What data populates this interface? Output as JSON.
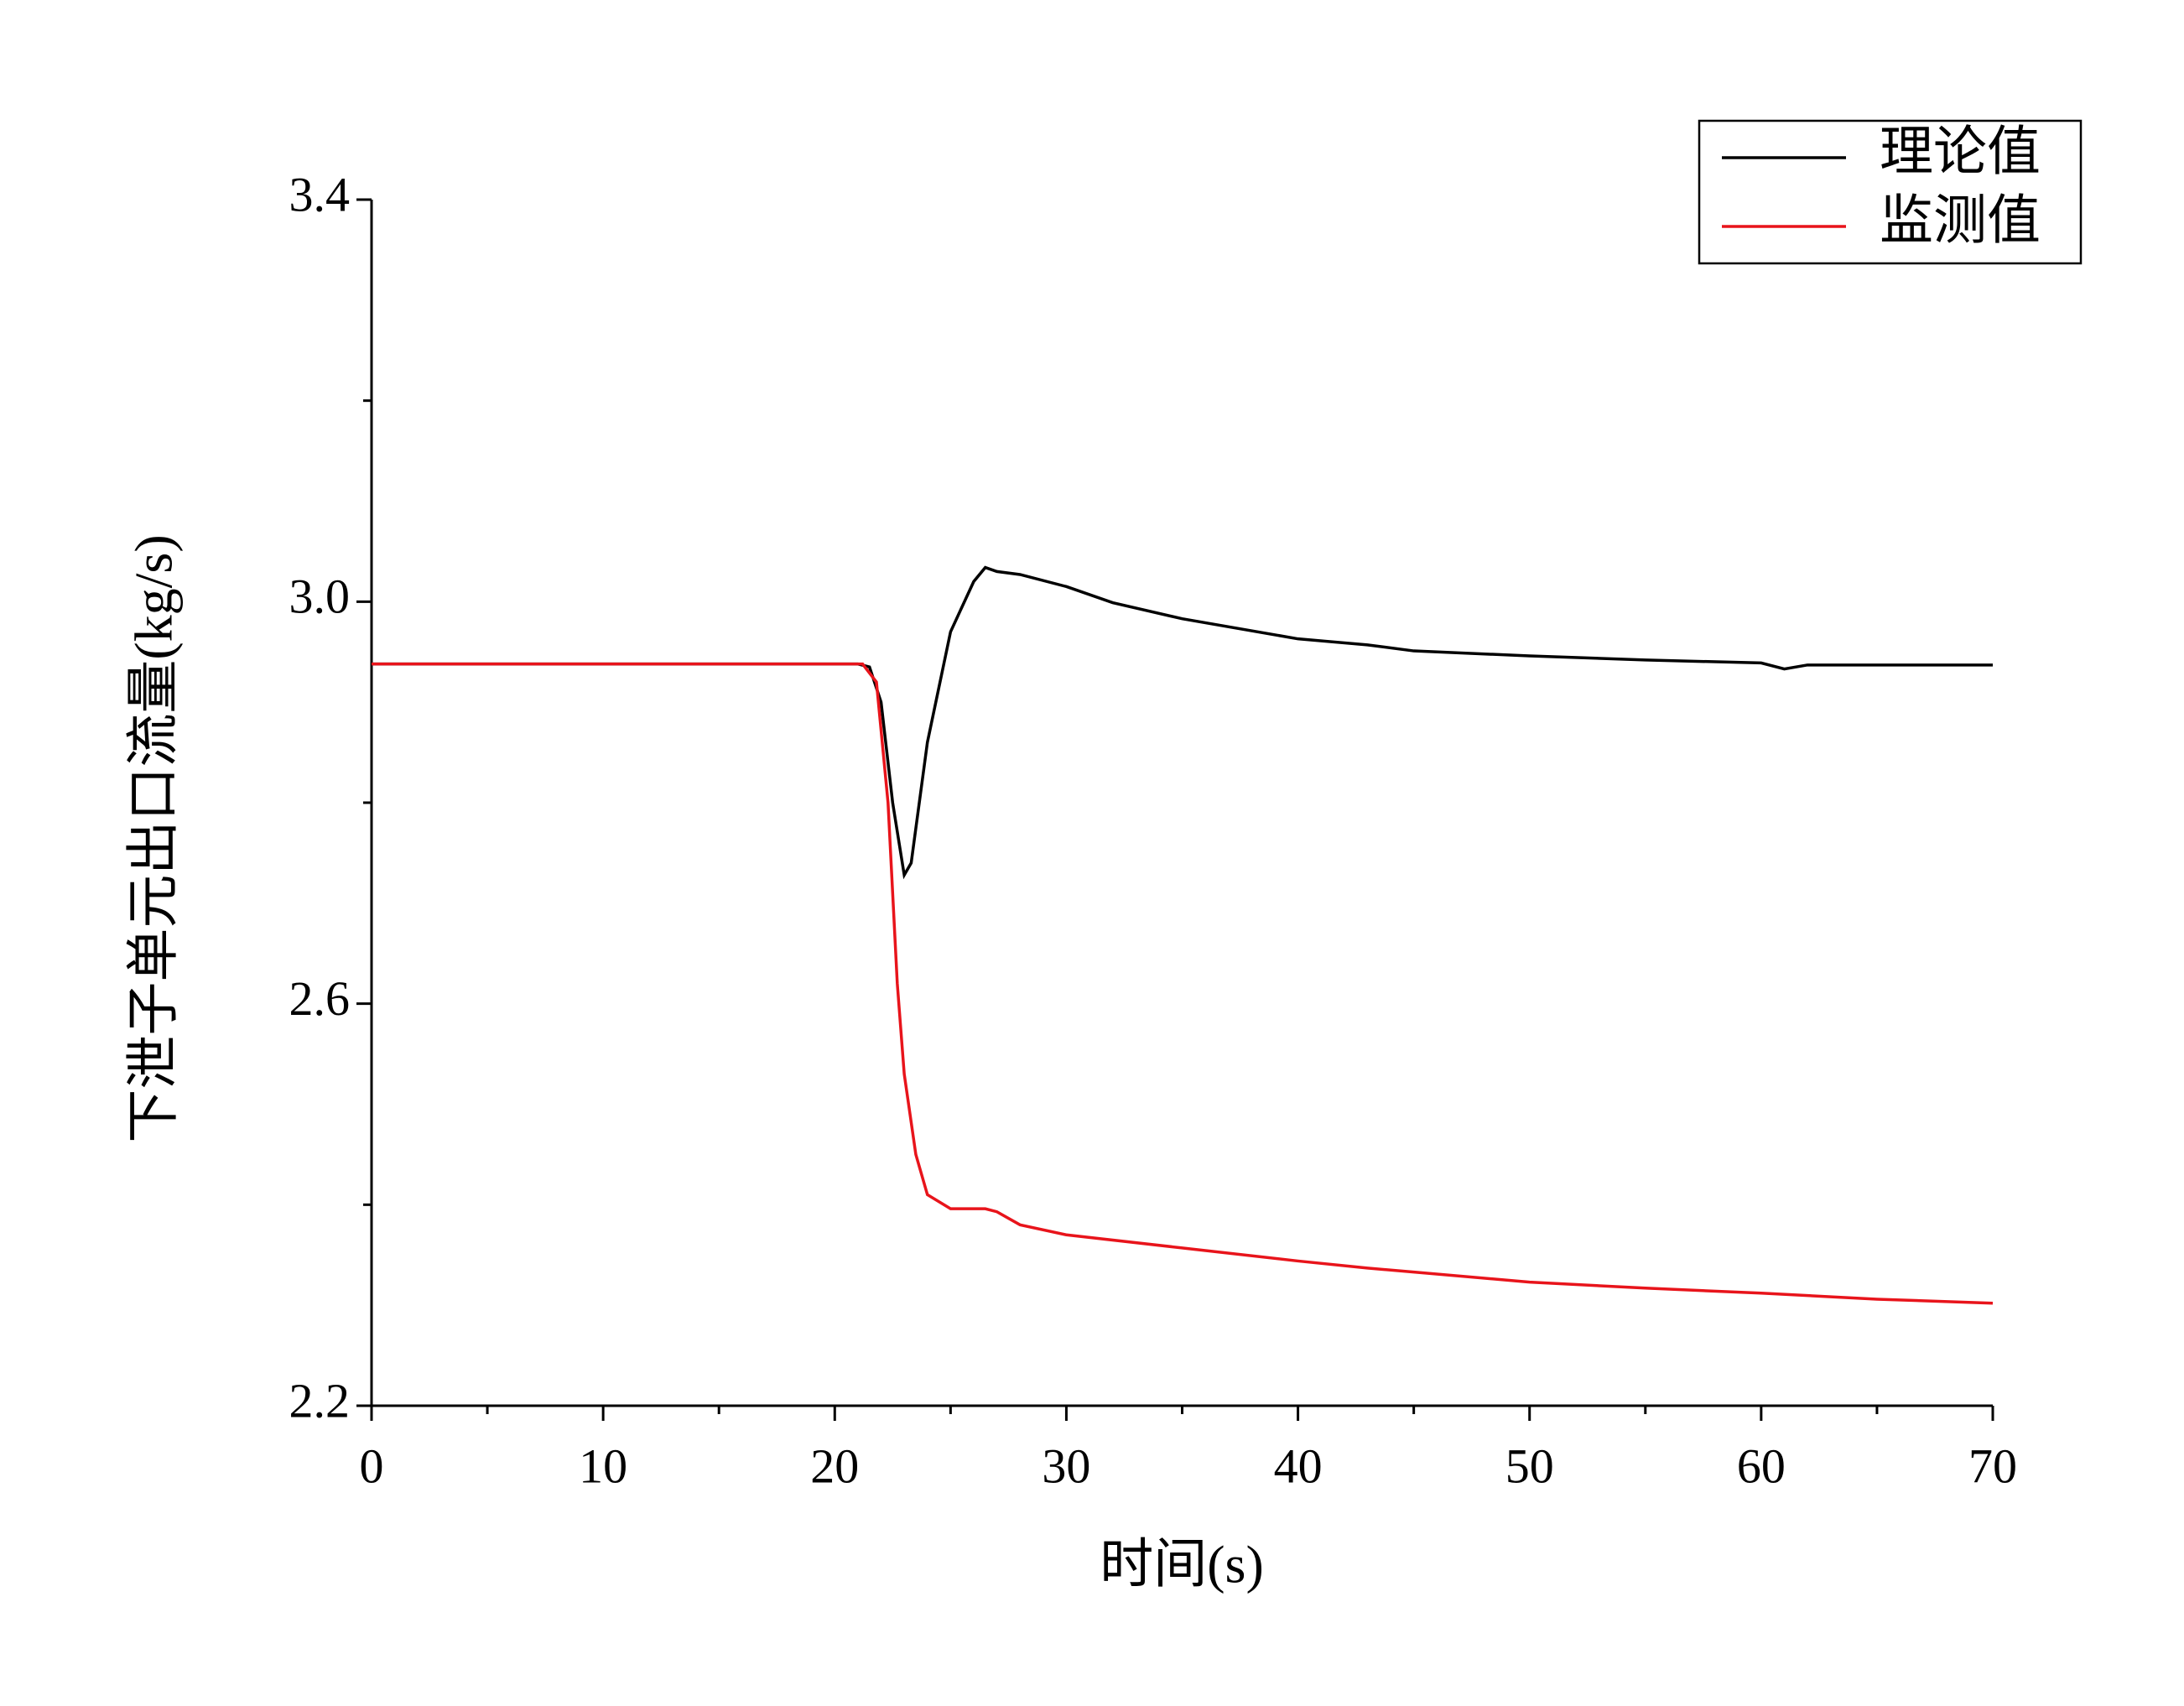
{
  "chart_data": {
    "type": "line",
    "x_label": "时间(s)",
    "y_label": "下泄子单元出口流量(kg/s)",
    "xlim": [
      0,
      70
    ],
    "xticks": [
      0,
      10,
      20,
      30,
      40,
      50,
      60,
      70
    ],
    "ylim": [
      2.2,
      3.4
    ],
    "yticks": [
      2.2,
      2.6,
      {
        "value": 3.0,
        "label": "3.0"
      },
      3.4
    ],
    "legend": "upper right",
    "series": [
      {
        "name": "理论值",
        "color": "#000000",
        "x": [
          0,
          21,
          21.5,
          22,
          22.5,
          23,
          23.3,
          24,
          25,
          26,
          26.5,
          27,
          28,
          30,
          32,
          35,
          40,
          43,
          45,
          50,
          55,
          60,
          61,
          62,
          70
        ],
        "values": [
          2.938,
          2.938,
          2.935,
          2.9,
          2.8,
          2.728,
          2.74,
          2.86,
          2.97,
          3.02,
          3.034,
          3.03,
          3.027,
          3.015,
          2.999,
          2.983,
          2.963,
          2.957,
          2.951,
          2.946,
          2.942,
          2.939,
          2.933,
          2.937,
          2.937
        ]
      },
      {
        "name": "监测值",
        "color": "#e8141b",
        "x": [
          0,
          21.2,
          21.8,
          22.3,
          22.7,
          23,
          23.5,
          24,
          25,
          26.5,
          27,
          28,
          30,
          35,
          40,
          43,
          45,
          50,
          55,
          60,
          65,
          70
        ],
        "values": [
          2.938,
          2.938,
          2.92,
          2.8,
          2.62,
          2.53,
          2.45,
          2.41,
          2.396,
          2.396,
          2.393,
          2.38,
          2.37,
          2.357,
          2.344,
          2.337,
          2.333,
          2.323,
          2.317,
          2.312,
          2.306,
          2.302
        ]
      }
    ]
  }
}
